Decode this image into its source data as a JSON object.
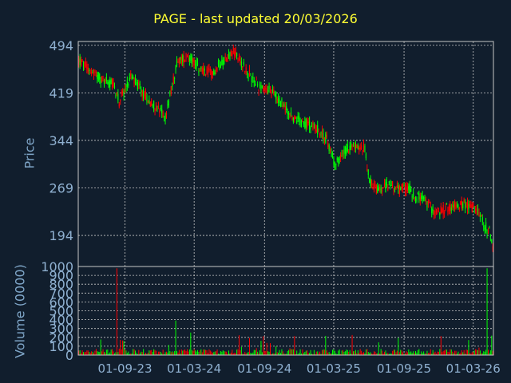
{
  "chart_data": {
    "type": "candlestick",
    "title": "PAGE - last updated 20/03/2026",
    "price_panel": {
      "ylabel": "Price",
      "yticks": [
        "494",
        "419",
        "344",
        "269",
        "194"
      ],
      "yticks_values": [
        494,
        419,
        344,
        269,
        194
      ],
      "ylim": [
        145,
        500
      ],
      "grid": true
    },
    "volume_panel": {
      "ylabel": "Volume (0000)",
      "yticks": [
        "1000",
        "900",
        "800",
        "700",
        "600",
        "500",
        "400",
        "300",
        "200",
        "100",
        "0"
      ],
      "yticks_values": [
        1000,
        900,
        800,
        700,
        600,
        500,
        400,
        300,
        200,
        100,
        0
      ],
      "ylim": [
        0,
        1000
      ],
      "grid": true
    },
    "xticks": [
      "01-09-23",
      "01-03-24",
      "01-09-24",
      "01-03-25",
      "01-09-25",
      "01-03-26"
    ],
    "xtick_positions_index": [
      40,
      100,
      161,
      221,
      282,
      342
    ],
    "colors": {
      "up": "#00ff00",
      "down": "#ff0000",
      "grid": "#c8c8c8",
      "axis": "#c8c8c8",
      "background": "#111e2d",
      "title": "#ffff33",
      "labels": "#8fb0d0"
    },
    "price_path": [
      [
        0,
        470
      ],
      [
        10,
        455
      ],
      [
        20,
        440
      ],
      [
        30,
        432
      ],
      [
        35,
        405
      ],
      [
        45,
        445
      ],
      [
        55,
        420
      ],
      [
        65,
        400
      ],
      [
        75,
        380
      ],
      [
        85,
        465
      ],
      [
        95,
        480
      ],
      [
        105,
        455
      ],
      [
        115,
        450
      ],
      [
        125,
        470
      ],
      [
        135,
        485
      ],
      [
        145,
        455
      ],
      [
        155,
        430
      ],
      [
        165,
        425
      ],
      [
        175,
        405
      ],
      [
        185,
        380
      ],
      [
        195,
        372
      ],
      [
        205,
        365
      ],
      [
        215,
        345
      ],
      [
        222,
        305
      ],
      [
        232,
        330
      ],
      [
        240,
        335
      ],
      [
        248,
        330
      ],
      [
        252,
        280
      ],
      [
        260,
        262
      ],
      [
        270,
        275
      ],
      [
        278,
        265
      ],
      [
        285,
        272
      ],
      [
        290,
        258
      ],
      [
        300,
        248
      ],
      [
        310,
        230
      ],
      [
        320,
        238
      ],
      [
        332,
        243
      ],
      [
        340,
        240
      ],
      [
        345,
        235
      ],
      [
        350,
        215
      ],
      [
        356,
        200
      ],
      [
        360,
        160
      ]
    ],
    "volume_spikes": [
      [
        33,
        980
      ],
      [
        84,
        390
      ],
      [
        354,
        980
      ]
    ]
  }
}
